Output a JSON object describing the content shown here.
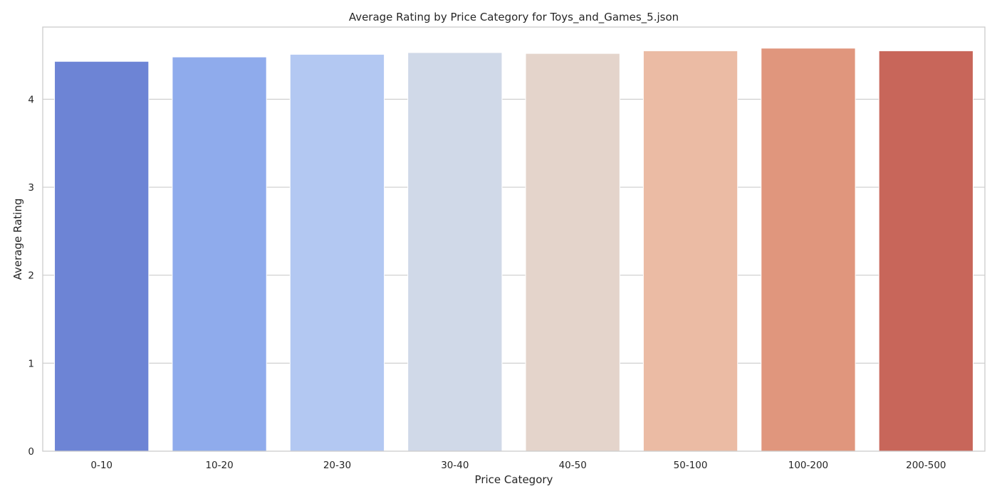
{
  "chart_data": {
    "type": "bar",
    "title": "Average Rating by Price Category for Toys_and_Games_5.json",
    "xlabel": "Price Category",
    "ylabel": "Average Rating",
    "categories": [
      "0-10",
      "10-20",
      "20-30",
      "30-40",
      "40-50",
      "50-100",
      "100-200",
      "200-500"
    ],
    "values": [
      4.43,
      4.48,
      4.51,
      4.53,
      4.52,
      4.55,
      4.58,
      4.55
    ],
    "colors": [
      "#6d84d5",
      "#8fabec",
      "#b3c8f2",
      "#d0d9e8",
      "#e4d4cb",
      "#ebbba4",
      "#e0967d",
      "#c8665a"
    ],
    "ylim": [
      0,
      4.82
    ],
    "yticks": [
      0,
      1,
      2,
      3,
      4
    ],
    "grid": true,
    "legend": "none"
  }
}
